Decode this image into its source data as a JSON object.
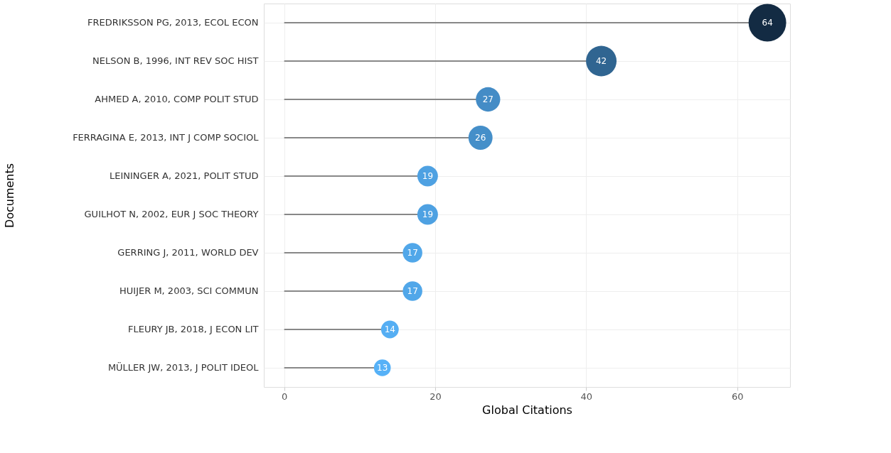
{
  "chart_data": {
    "type": "lollipop",
    "orientation": "horizontal",
    "xlabel": "Global Citations",
    "ylabel": "Documents",
    "categories": [
      "FREDRIKSSON PG, 2013, ECOL ECON",
      "NELSON B, 1996, INT REV SOC HIST",
      "AHMED A, 2010, COMP POLIT STUD",
      "FERRAGINA E, 2013, INT J COMP SOCIOL",
      "LEININGER A, 2021, POLIT STUD",
      "GUILHOT N, 2002, EUR J SOC THEORY",
      "GERRING J, 2011, WORLD DEV",
      "HUIJER M, 2003, SCI COMMUN",
      "FLEURY JB, 2018, J ECON LIT",
      "MÜLLER JW, 2013, J POLIT IDEOL"
    ],
    "values": [
      64,
      42,
      27,
      26,
      19,
      19,
      17,
      17,
      14,
      13
    ],
    "sizes": [
      1,
      0.66,
      0.42,
      0.41,
      0.3,
      0.3,
      0.27,
      0.27,
      0.22,
      0.2
    ],
    "colors": [
      "#132b43",
      "#306591",
      "#448cc6",
      "#458fc9",
      "#4ea1e2",
      "#4ea1e2",
      "#51a7e9",
      "#51a7e9",
      "#55aef3",
      "#56b1f7"
    ],
    "xlim": [
      -2.7,
      67
    ],
    "xticks": [
      0,
      20,
      40,
      60
    ],
    "grid": true,
    "data_labels": true,
    "legend": false
  }
}
